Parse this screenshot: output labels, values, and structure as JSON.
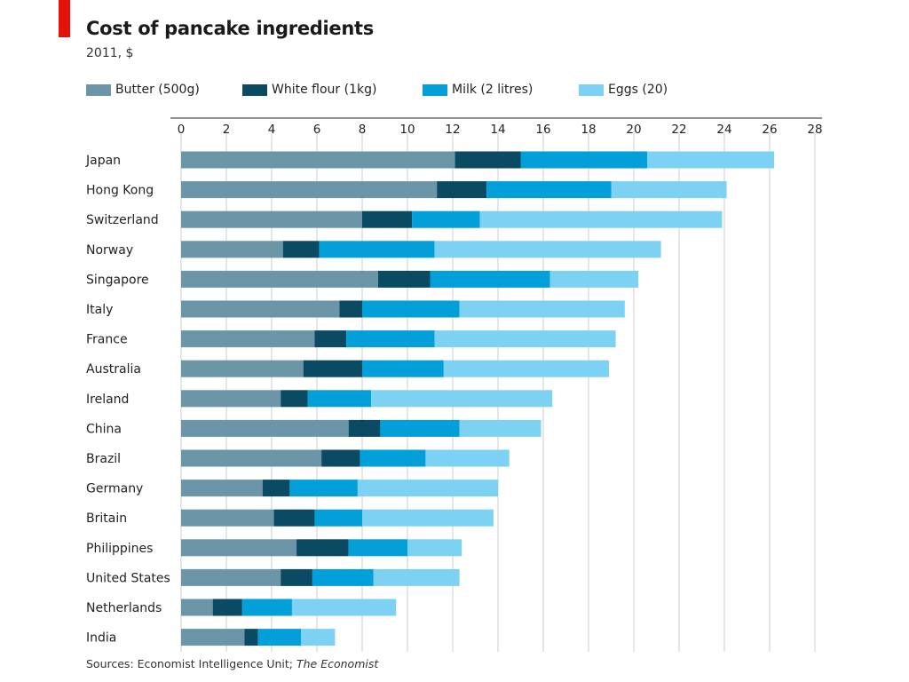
{
  "header": {
    "title": "Cost of pancake ingredients",
    "subtitle": "2011, $"
  },
  "footer": {
    "source_prefix": "Sources: Economist Intelligence Unit; ",
    "source_italic": "The Economist"
  },
  "colors": {
    "accent": "#e3120b",
    "butter": "#6a96a8",
    "flour": "#0b4a63",
    "milk": "#039fd9",
    "eggs": "#7dd2f3",
    "grid": "#cccccc"
  },
  "chart_data": {
    "type": "bar",
    "orientation": "horizontal",
    "stacked": true,
    "title": "Cost of pancake ingredients",
    "subtitle": "2011, $",
    "xlabel": "",
    "ylabel": "",
    "xlim": [
      0,
      28
    ],
    "xticks": [
      0,
      2,
      4,
      6,
      8,
      10,
      12,
      14,
      16,
      18,
      20,
      22,
      24,
      26,
      28
    ],
    "grid": true,
    "legend_position": "top",
    "categories": [
      "Japan",
      "Hong Kong",
      "Switzerland",
      "Norway",
      "Singapore",
      "Italy",
      "France",
      "Australia",
      "Ireland",
      "China",
      "Brazil",
      "Germany",
      "Britain",
      "Philippines",
      "United States",
      "Netherlands",
      "India"
    ],
    "series": [
      {
        "name": "Butter (500g)",
        "color": "#6a96a8",
        "values": [
          12.1,
          11.3,
          8.0,
          4.5,
          8.7,
          7.0,
          5.9,
          5.4,
          4.4,
          7.4,
          6.2,
          3.6,
          4.1,
          5.1,
          4.4,
          1.4,
          2.8
        ]
      },
      {
        "name": "White flour (1kg)",
        "color": "#0b4a63",
        "values": [
          2.9,
          2.2,
          2.2,
          1.6,
          2.3,
          1.0,
          1.4,
          2.6,
          1.2,
          1.4,
          1.7,
          1.2,
          1.8,
          2.3,
          1.4,
          1.3,
          0.6
        ]
      },
      {
        "name": "Milk (2 litres)",
        "color": "#039fd9",
        "values": [
          5.6,
          5.5,
          3.0,
          5.1,
          5.3,
          4.3,
          3.9,
          3.6,
          2.8,
          3.5,
          2.9,
          3.0,
          2.1,
          2.6,
          2.7,
          2.2,
          1.9
        ]
      },
      {
        "name": "Eggs (20)",
        "color": "#7dd2f3",
        "values": [
          5.6,
          5.1,
          10.7,
          10.0,
          3.9,
          7.3,
          8.0,
          7.3,
          8.0,
          3.6,
          3.7,
          6.2,
          5.8,
          2.4,
          3.8,
          4.6,
          1.5
        ]
      }
    ]
  }
}
